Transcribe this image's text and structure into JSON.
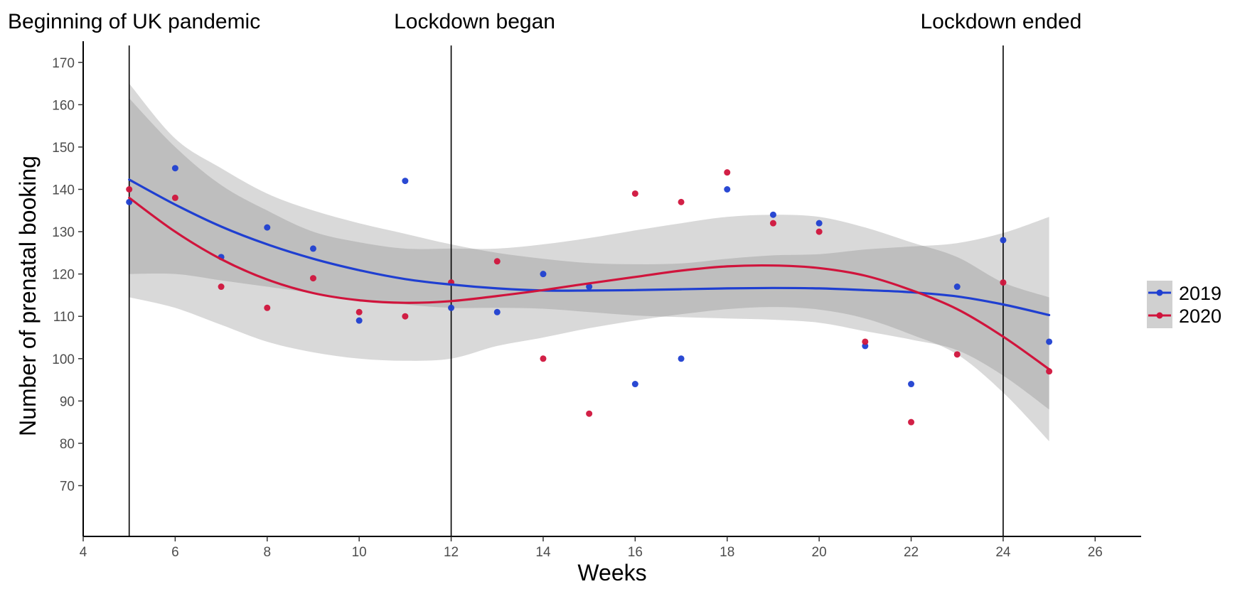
{
  "chart_data": {
    "type": "scatter",
    "xlabel": "Weeks",
    "ylabel": "Number of prenatal booking",
    "xlim": [
      4,
      27
    ],
    "ylim": [
      58,
      175
    ],
    "x_ticks": [
      4,
      6,
      8,
      10,
      12,
      14,
      16,
      18,
      20,
      22,
      24,
      26
    ],
    "y_ticks": [
      70,
      80,
      90,
      100,
      110,
      120,
      130,
      140,
      150,
      160,
      170
    ],
    "grid": false,
    "legend_position": "right",
    "annotations": [
      {
        "x": 5,
        "label": "Beginning of UK pandemic"
      },
      {
        "x": 12,
        "label": "Lockdown began"
      },
      {
        "x": 24,
        "label": "Lockdown ended"
      }
    ],
    "series": [
      {
        "name": "2019",
        "color": "#1f3fd1",
        "x": [
          5,
          6,
          7,
          8,
          9,
          10,
          11,
          12,
          13,
          14,
          15,
          16,
          17,
          18,
          19,
          20,
          21,
          22,
          23,
          24,
          25
        ],
        "y": [
          137,
          145,
          124,
          131,
          126,
          109,
          142,
          112,
          111,
          120,
          117,
          94,
          100,
          140,
          134,
          132,
          103,
          94,
          117,
          128,
          104
        ],
        "fit": {
          "x": [
            5,
            6,
            7,
            8,
            9,
            10,
            11,
            12,
            13,
            14,
            15,
            16,
            17,
            18,
            19,
            20,
            21,
            22,
            23,
            24,
            25
          ],
          "y": [
            142.3,
            136.4,
            131.2,
            127,
            123.6,
            120.9,
            118.8,
            117.5,
            116.6,
            116.1,
            116.1,
            116.2,
            116.4,
            116.6,
            116.7,
            116.6,
            116.2,
            115.7,
            114.7,
            112.8,
            110.3
          ],
          "ci_lower": [
            120,
            120,
            118.5,
            117,
            115.5,
            114,
            112.8,
            112,
            112,
            111.8,
            111,
            110.2,
            109.8,
            109.5,
            109.2,
            108.5,
            106.5,
            104.5,
            102,
            96,
            88
          ],
          "ci_upper": [
            165,
            152,
            145,
            139,
            135,
            132,
            129.5,
            127,
            125,
            123.6,
            122.6,
            122.3,
            122.5,
            123.6,
            124.4,
            124.7,
            125.8,
            126.5,
            127.3,
            129.7,
            133.5
          ]
        }
      },
      {
        "name": "2020",
        "color": "#d0143c",
        "x": [
          5,
          6,
          7,
          8,
          9,
          10,
          11,
          12,
          13,
          14,
          15,
          16,
          17,
          18,
          19,
          20,
          21,
          22,
          23,
          24,
          25
        ],
        "y": [
          140,
          138,
          117,
          112,
          119,
          111,
          110,
          118,
          123,
          100,
          87,
          139,
          137,
          144,
          132,
          130,
          104,
          85,
          101,
          118,
          97
        ],
        "fit": {
          "x": [
            5,
            6,
            7,
            8,
            9,
            10,
            11,
            12,
            13,
            14,
            15,
            16,
            17,
            18,
            19,
            20,
            21,
            22,
            23,
            24,
            25
          ],
          "y": [
            138,
            130,
            123.5,
            118.7,
            115.5,
            113.8,
            113.2,
            113.6,
            114.8,
            116.2,
            117.8,
            119.3,
            120.8,
            121.8,
            122,
            121.4,
            119.6,
            116.2,
            111.7,
            105.2,
            97.5
          ],
          "ci_lower": [
            114.5,
            112,
            108,
            104,
            101.5,
            100,
            99.5,
            100,
            103,
            105,
            107.2,
            109,
            110.5,
            111.7,
            112.2,
            111.6,
            109.5,
            105.7,
            101,
            92,
            80.5
          ],
          "ci_upper": [
            161.5,
            150,
            141,
            135,
            130,
            127.5,
            126,
            126,
            126,
            127,
            128.5,
            130.3,
            132,
            133.5,
            134,
            133.5,
            131,
            127.5,
            124,
            118,
            114.5
          ]
        }
      }
    ]
  }
}
